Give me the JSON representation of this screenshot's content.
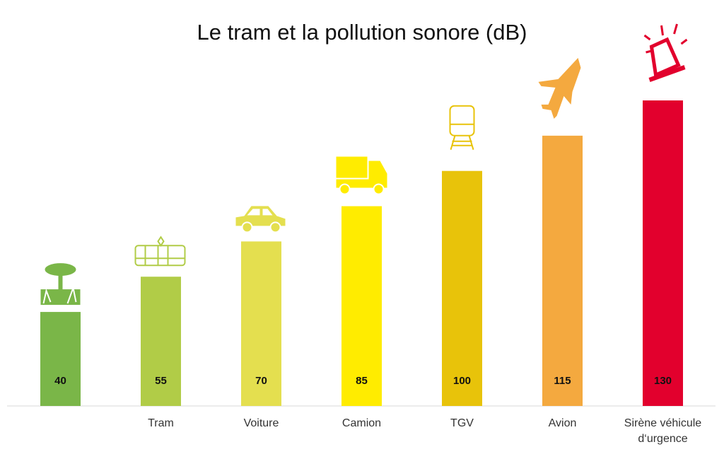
{
  "chart_data": {
    "type": "bar",
    "title": "Le tram et la pollution sonore (dB)",
    "categories": [
      "",
      "Tram",
      "Voiture",
      "Camion",
      "TGV",
      "Avion",
      "Sirène véhicule d‘urgence"
    ],
    "values": [
      40,
      55,
      70,
      85,
      100,
      115,
      130
    ],
    "colors": [
      "#7ab648",
      "#b1cc47",
      "#e4df4f",
      "#ffec00",
      "#e8c30a",
      "#f4a93f",
      "#e2002d"
    ],
    "icons": [
      "nature-icon",
      "tram-icon",
      "car-icon",
      "truck-icon",
      "train-icon",
      "plane-icon",
      "siren-icon"
    ],
    "ylim": [
      0,
      130
    ],
    "grid": false,
    "legend": "none",
    "data_labels": true
  }
}
